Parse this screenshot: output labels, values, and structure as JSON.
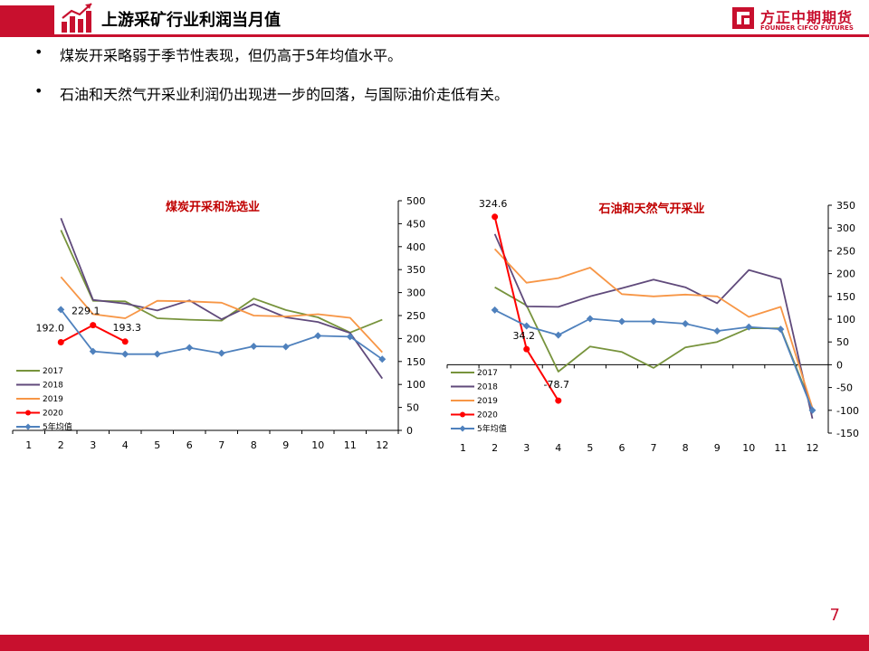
{
  "header": {
    "title": "上游采矿行业利润当月值",
    "logo_cn": "方正中期期货",
    "logo_en": "FOUNDER CIFCO FUTURES",
    "brand_color": "#c8102e"
  },
  "bullets": [
    {
      "symbol": "•",
      "text": "煤炭开采略弱于季节性表现，但仍高于5年均值水平。"
    },
    {
      "symbol": "•",
      "text": "石油和天然气开采业利润仍出现进一步的回落，与国际油价走低有关。"
    }
  ],
  "page_number": "7",
  "chart_data": [
    {
      "type": "line",
      "title": "煤炭开采和洗选业",
      "x": [
        1,
        2,
        3,
        4,
        5,
        6,
        7,
        8,
        9,
        10,
        11,
        12
      ],
      "ylim": [
        0,
        500
      ],
      "yticks": [
        0,
        50,
        100,
        150,
        200,
        250,
        300,
        350,
        400,
        450,
        500
      ],
      "y_axis_side": "right",
      "legend_position": "bottom-left",
      "grid": false,
      "series": [
        {
          "name": "2017",
          "color": "#77933c",
          "marker": "none",
          "values": [
            null,
            436,
            282,
            281,
            244,
            241,
            239,
            287,
            262,
            246,
            213,
            241
          ]
        },
        {
          "name": "2018",
          "color": "#604a7b",
          "marker": "none",
          "values": [
            null,
            462,
            284,
            276,
            261,
            283,
            242,
            275,
            246,
            236,
            212,
            113
          ]
        },
        {
          "name": "2019",
          "color": "#f79646",
          "marker": "none",
          "values": [
            null,
            334,
            253,
            244,
            282,
            281,
            278,
            250,
            248,
            253,
            245,
            170
          ]
        },
        {
          "name": "2020",
          "color": "#ff0000",
          "marker": "circle",
          "values": [
            null,
            192.0,
            229.1,
            193.3,
            null,
            null,
            null,
            null,
            null,
            null,
            null,
            null
          ],
          "labels": [
            "",
            "192.0",
            "229.1",
            "193.3",
            "",
            "",
            "",
            "",
            "",
            "",
            "",
            ""
          ]
        },
        {
          "name": "5年均值",
          "color": "#4f81bd",
          "marker": "diamond",
          "values": [
            null,
            263,
            172,
            166,
            166,
            180,
            168,
            183,
            182,
            206,
            204,
            155
          ]
        }
      ]
    },
    {
      "type": "line",
      "title": "石油和天然气开采业",
      "x": [
        1,
        2,
        3,
        4,
        5,
        6,
        7,
        8,
        9,
        10,
        11,
        12
      ],
      "ylim": [
        -150,
        350
      ],
      "yticks": [
        -150,
        -100,
        -50,
        0,
        50,
        100,
        150,
        200,
        250,
        300,
        350
      ],
      "y_axis_side": "right",
      "legend_position": "bottom-left",
      "grid": false,
      "series": [
        {
          "name": "2017",
          "color": "#77933c",
          "marker": "none",
          "values": [
            null,
            170,
            130,
            -15,
            40,
            28,
            -7,
            38,
            50,
            80,
            80,
            -95
          ]
        },
        {
          "name": "2018",
          "color": "#604a7b",
          "marker": "none",
          "values": [
            null,
            287,
            128,
            127,
            150,
            168,
            187,
            170,
            135,
            208,
            188,
            -118
          ]
        },
        {
          "name": "2019",
          "color": "#f79646",
          "marker": "none",
          "values": [
            null,
            254,
            180,
            190,
            213,
            155,
            150,
            154,
            150,
            105,
            127,
            -95
          ]
        },
        {
          "name": "2020",
          "color": "#ff0000",
          "marker": "circle",
          "values": [
            null,
            324.6,
            34.2,
            -78.7,
            null,
            null,
            null,
            null,
            null,
            null,
            null,
            null
          ],
          "labels": [
            "",
            "324.6",
            "34.2",
            "-78.7",
            "",
            "",
            "",
            "",
            "",
            "",
            "",
            ""
          ]
        },
        {
          "name": "5年均值",
          "color": "#4f81bd",
          "marker": "diamond",
          "values": [
            null,
            120,
            85,
            65,
            101,
            95,
            95,
            90,
            74,
            83,
            78,
            -100
          ]
        }
      ]
    }
  ]
}
